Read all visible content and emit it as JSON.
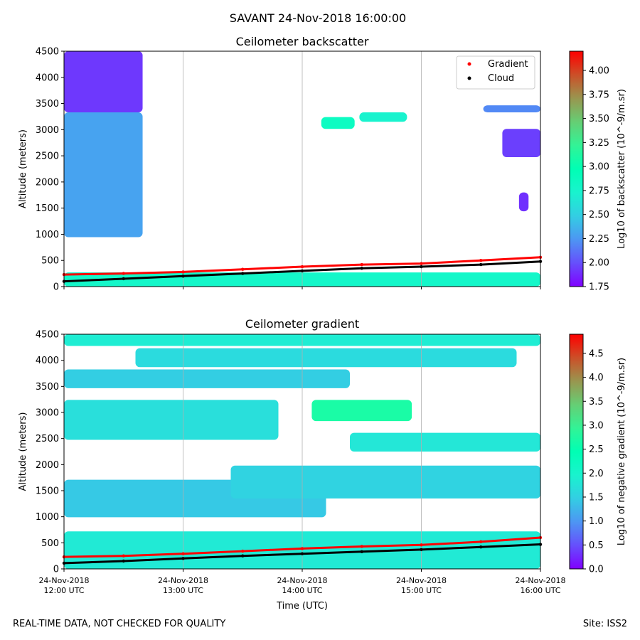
{
  "title": "SAVANT 24-Nov-2018 16:00:00",
  "footer": {
    "left": "REAL-TIME DATA, NOT CHECKED FOR QUALITY",
    "right": "Site: ISS2"
  },
  "chart_data": [
    {
      "type": "heatmap",
      "title": "Ceilometer backscatter",
      "ylabel": "Altitude (meters)",
      "ylim": [
        0,
        4500
      ],
      "yticks": [
        "0",
        "500",
        "1000",
        "1500",
        "2000",
        "2500",
        "3000",
        "3500",
        "4000",
        "4500"
      ],
      "x_start": "24-Nov-2018 12:00 UTC",
      "x_end": "24-Nov-2018 16:00 UTC",
      "xticks_shown": false,
      "grid": "vertical lines at hourly ticks",
      "colorbar": {
        "label": "Log10 of backscatter (10^-9/m.sr)",
        "range": [
          1.75,
          4.2
        ],
        "ticks": [
          "1.75",
          "2.00",
          "2.25",
          "2.50",
          "2.75",
          "3.00",
          "3.25",
          "3.50",
          "3.75",
          "4.00"
        ],
        "colormap": "rainbow"
      },
      "legend": {
        "position": "top-right",
        "entries": [
          {
            "label": "Gradient",
            "color": "#ff0000",
            "marker": "dot"
          },
          {
            "label": "Cloud",
            "color": "#000000",
            "marker": "dot"
          }
        ]
      },
      "series": [
        {
          "name": "Gradient",
          "color": "#ff0000",
          "x_hours": [
            12.0,
            12.5,
            13.0,
            13.5,
            14.0,
            14.5,
            15.0,
            15.5,
            16.0
          ],
          "altitude_m": [
            230,
            250,
            280,
            330,
            380,
            420,
            440,
            500,
            560
          ]
        },
        {
          "name": "Cloud",
          "color": "#000000",
          "x_hours": [
            12.0,
            12.5,
            13.0,
            13.5,
            14.0,
            14.5,
            15.0,
            15.5,
            16.0
          ],
          "altitude_m": [
            100,
            150,
            200,
            250,
            300,
            350,
            380,
            420,
            480
          ]
        }
      ]
    },
    {
      "type": "heatmap",
      "title": "Ceilometer gradient",
      "xlabel": "Time (UTC)",
      "ylabel": "Altitude (meters)",
      "ylim": [
        0,
        4500
      ],
      "yticks": [
        "0",
        "500",
        "1000",
        "1500",
        "2000",
        "2500",
        "3000",
        "3500",
        "4000",
        "4500"
      ],
      "xticks": [
        {
          "line1": "24-Nov-2018",
          "line2": "12:00 UTC"
        },
        {
          "line1": "24-Nov-2018",
          "line2": "13:00 UTC"
        },
        {
          "line1": "24-Nov-2018",
          "line2": "14:00 UTC"
        },
        {
          "line1": "24-Nov-2018",
          "line2": "15:00 UTC"
        },
        {
          "line1": "24-Nov-2018",
          "line2": "16:00 UTC"
        }
      ],
      "grid": "vertical lines at hourly ticks",
      "colorbar": {
        "label": "Log10 of negative gradient (10^-9/m.sr)",
        "range": [
          0.0,
          4.9
        ],
        "ticks": [
          "0.0",
          "0.5",
          "1.0",
          "1.5",
          "2.0",
          "2.5",
          "3.0",
          "3.5",
          "4.0",
          "4.5"
        ],
        "colormap": "rainbow"
      },
      "series": [
        {
          "name": "Gradient",
          "color": "#ff0000",
          "x_hours": [
            12.0,
            12.5,
            13.0,
            13.5,
            14.0,
            14.5,
            15.0,
            15.5,
            16.0
          ],
          "altitude_m": [
            230,
            250,
            290,
            340,
            390,
            430,
            460,
            520,
            600
          ]
        },
        {
          "name": "Cloud",
          "color": "#000000",
          "x_hours": [
            12.0,
            12.5,
            13.0,
            13.5,
            14.0,
            14.5,
            15.0,
            15.5,
            16.0
          ],
          "altitude_m": [
            110,
            150,
            200,
            250,
            290,
            330,
            370,
            420,
            470
          ]
        }
      ]
    }
  ]
}
